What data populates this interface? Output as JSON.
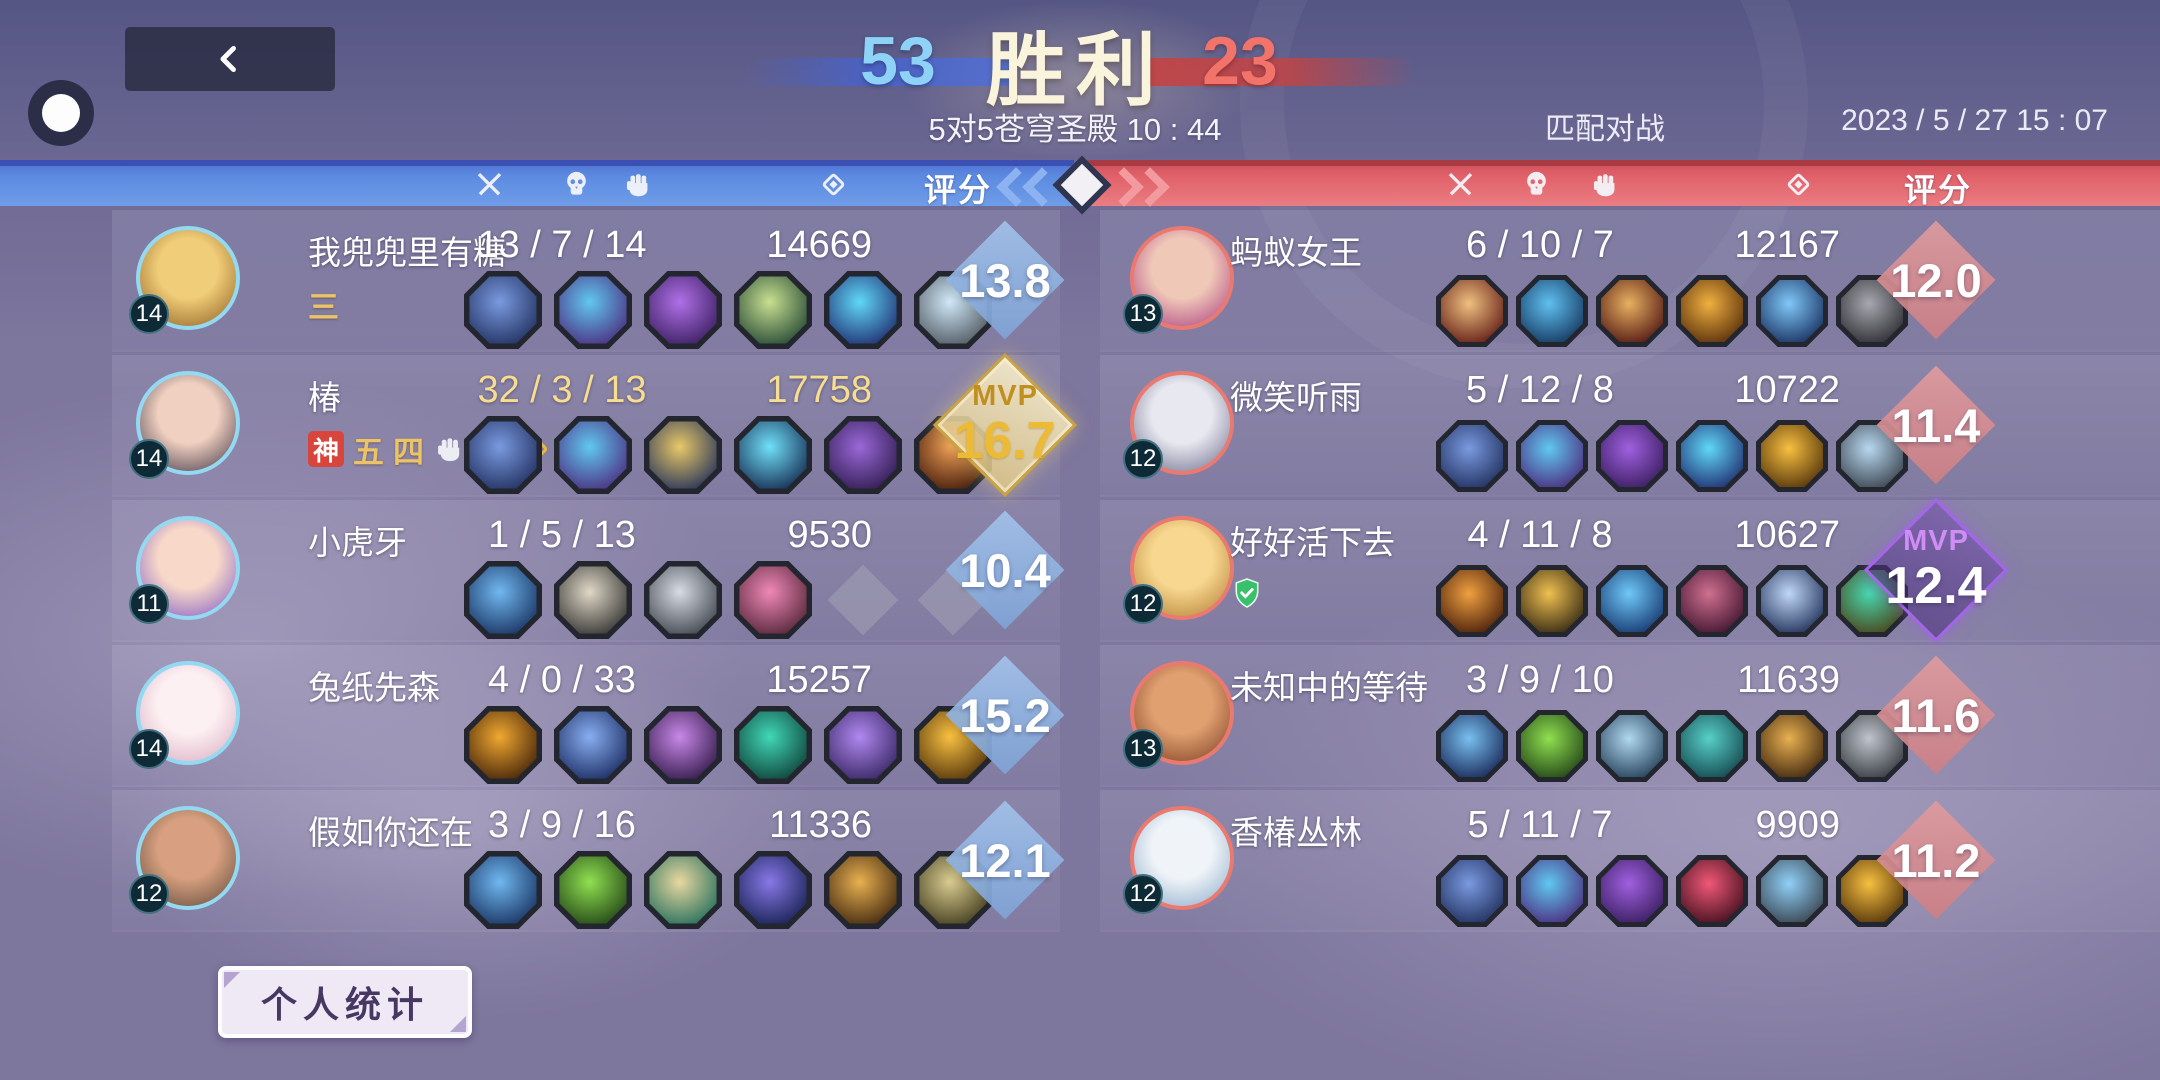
{
  "header": {
    "win_team_score": "53",
    "result_label": "胜利",
    "lose_team_score": "23",
    "match_info": "5对5苍穹圣殿 10 : 44",
    "mode_label": "匹配对战",
    "datetime": "2023 / 5 / 27  15 : 07",
    "rating_label": "评分"
  },
  "mvp_label": "MVP",
  "footer": {
    "personal_stats_label": "个人统计"
  },
  "colors": {
    "team_blue": "#5c8ae0",
    "team_red": "#e16169",
    "score_blue": "#8fb2de",
    "score_red": "#d78d91",
    "mvp_gold": "#edba35",
    "mvp_purple": "#a465ea",
    "mvp_row_text": "#f7dd8f",
    "avatar_ring_blue": "#93d9f2",
    "avatar_ring_red": "#ea7a70"
  },
  "teams": {
    "left": {
      "side": "blue",
      "players": [
        {
          "name": "我兜兜里有糖",
          "level": "14",
          "kda": "13 / 7 / 14",
          "gold": "14669",
          "score": "13.8",
          "mvp": false,
          "badges": [
            {
              "kind": "text",
              "text": "三"
            }
          ],
          "avatar": [
            "#f0cd78",
            "#8a5a20"
          ],
          "items": [
            [
              "#7a9ae0",
              "#1c2a58"
            ],
            [
              "#60c8f0",
              "#4a2478"
            ],
            [
              "#b070e8",
              "#341a58"
            ],
            [
              "#c8e090",
              "#1c4030"
            ],
            [
              "#60d8f8",
              "#1c2468"
            ],
            [
              "#d0e8f8",
              "#485058"
            ]
          ],
          "empty_slots": 0
        },
        {
          "name": "椿",
          "level": "14",
          "kda": "32 / 3 / 13",
          "gold": "17758",
          "score": "16.7",
          "mvp": true,
          "badges": [
            {
              "kind": "red-badge",
              "text": "神"
            },
            {
              "kind": "text",
              "text": "五"
            },
            {
              "kind": "text",
              "text": "四"
            },
            {
              "kind": "icon",
              "icon": "fist"
            },
            {
              "kind": "icon-red",
              "icon": "swords"
            },
            {
              "kind": "icon-gold",
              "icon": "coin"
            }
          ],
          "avatar": [
            "#f0d0c0",
            "#3a2f42"
          ],
          "items": [
            [
              "#7a9ae0",
              "#1c2a58"
            ],
            [
              "#60c8f0",
              "#4a2478"
            ],
            [
              "#e8c868",
              "#1a2a58"
            ],
            [
              "#70e0f8",
              "#102048"
            ],
            [
              "#9a68d8",
              "#2a1848"
            ],
            [
              "#e89850",
              "#3a1408"
            ]
          ],
          "empty_slots": 0
        },
        {
          "name": "小虎牙",
          "level": "11",
          "kda": "1 / 5 / 13",
          "gold": "9530",
          "score": "10.4",
          "mvp": false,
          "badges": [],
          "avatar": [
            "#f8d8c8",
            "#7a55c8"
          ],
          "items": [
            [
              "#70b8f0",
              "#142a58"
            ],
            [
              "#e0d8c8",
              "#2a2a28"
            ],
            [
              "#d8dce4",
              "#383c44"
            ],
            [
              "#f088b8",
              "#4a2030"
            ]
          ],
          "empty_slots": 2
        },
        {
          "name": "兔纸先森",
          "level": "14",
          "kda": "4 / 0 / 33",
          "gold": "15257",
          "score": "15.2",
          "mvp": false,
          "badges": [],
          "avatar": [
            "#fdf0f2",
            "#d8a8c0"
          ],
          "items": [
            [
              "#f0a830",
              "#3a1c08"
            ],
            [
              "#88aef0",
              "#14245a"
            ],
            [
              "#c888e8",
              "#2a1440"
            ],
            [
              "#40d8b8",
              "#0c3830"
            ],
            [
              "#b088f0",
              "#30205a"
            ],
            [
              "#f8c040",
              "#4a2c08"
            ]
          ],
          "empty_slots": 0
        },
        {
          "name": "假如你还在",
          "level": "12",
          "kda": "3 / 9 / 16",
          "gold": "11336",
          "score": "12.1",
          "mvp": false,
          "badges": [],
          "avatar": [
            "#d8a080",
            "#5a4638"
          ],
          "items": [
            [
              "#70b8f0",
              "#142a58"
            ],
            [
              "#90e050",
              "#1c3c14"
            ],
            [
              "#e8d8a0",
              "#186858"
            ],
            [
              "#8878e8",
              "#101c48"
            ],
            [
              "#e8b050",
              "#38200c"
            ],
            [
              "#d8cc90",
              "#3a3418"
            ]
          ],
          "empty_slots": 0
        }
      ]
    },
    "right": {
      "side": "red",
      "players": [
        {
          "name": "蚂蚁女王",
          "level": "13",
          "kda": "6 / 10 / 7",
          "gold": "12167",
          "score": "12.0",
          "mvp": false,
          "badges": [],
          "avatar": [
            "#f0c8b8",
            "#a8387e"
          ],
          "items": [
            [
              "#f0c080",
              "#5a1410"
            ],
            [
              "#60c0f0",
              "#103058"
            ],
            [
              "#e8b060",
              "#4a1010"
            ],
            [
              "#f0b040",
              "#502808"
            ],
            [
              "#80c8f8",
              "#122858"
            ],
            [
              "#a8a8b0",
              "#26262c"
            ]
          ],
          "empty_slots": 0
        },
        {
          "name": "微笑听雨",
          "level": "12",
          "kda": "5 / 12 / 8",
          "gold": "10722",
          "score": "11.4",
          "mvp": false,
          "badges": [],
          "avatar": [
            "#e8e8f0",
            "#6a6a8a"
          ],
          "items": [
            [
              "#7a9ae0",
              "#1c2a58"
            ],
            [
              "#60c8f0",
              "#4a2478"
            ],
            [
              "#a060e0",
              "#341a58"
            ],
            [
              "#60d8f8",
              "#1c2468"
            ],
            [
              "#f8c040",
              "#4a2c08"
            ],
            [
              "#b8d8f0",
              "#343c46"
            ]
          ],
          "empty_slots": 0
        },
        {
          "name": "好好活下去",
          "level": "12",
          "kda": "4 / 11 / 8",
          "gold": "10627",
          "score": "12.4",
          "mvp": true,
          "badges": [
            {
              "kind": "green-shield",
              "icon": "shield-check"
            }
          ],
          "avatar": [
            "#f8d890",
            "#b07830"
          ],
          "items": [
            [
              "#f0a040",
              "#401808"
            ],
            [
              "#f0c050",
              "#2a2010"
            ],
            [
              "#70c8f8",
              "#103068"
            ],
            [
              "#d07090",
              "#38102a"
            ],
            [
              "#c0d8f8",
              "#182850"
            ],
            [
              "#48d8b0",
              "#4a3c10"
            ]
          ],
          "empty_slots": 0
        },
        {
          "name": "未知中的等待",
          "level": "13",
          "kda": "3 / 9 / 10",
          "gold": "11639",
          "score": "11.6",
          "mvp": false,
          "badges": [],
          "avatar": [
            "#e0a070",
            "#7a3a20"
          ],
          "items": [
            [
              "#78c0f0",
              "#142050"
            ],
            [
              "#90e050",
              "#1c3c14"
            ],
            [
              "#b0d8f0",
              "#1c3850"
            ],
            [
              "#58d0c8",
              "#104048"
            ],
            [
              "#e8b050",
              "#38200c"
            ],
            [
              "#c0c4cc",
              "#30343a"
            ]
          ],
          "empty_slots": 0
        },
        {
          "name": "香椿丛林",
          "level": "12",
          "kda": "5 / 11 / 7",
          "gold": "9909",
          "score": "11.2",
          "mvp": false,
          "badges": [],
          "avatar": [
            "#f0f4f8",
            "#88a8c8"
          ],
          "items": [
            [
              "#7a9ae0",
              "#1c2a58"
            ],
            [
              "#60c8f0",
              "#4a2478"
            ],
            [
              "#a060e0",
              "#341a58"
            ],
            [
              "#f05878",
              "#380c18"
            ],
            [
              "#90d0f8",
              "#343c46"
            ],
            [
              "#f8c040",
              "#4a2c08"
            ]
          ],
          "empty_slots": 0
        }
      ]
    }
  }
}
